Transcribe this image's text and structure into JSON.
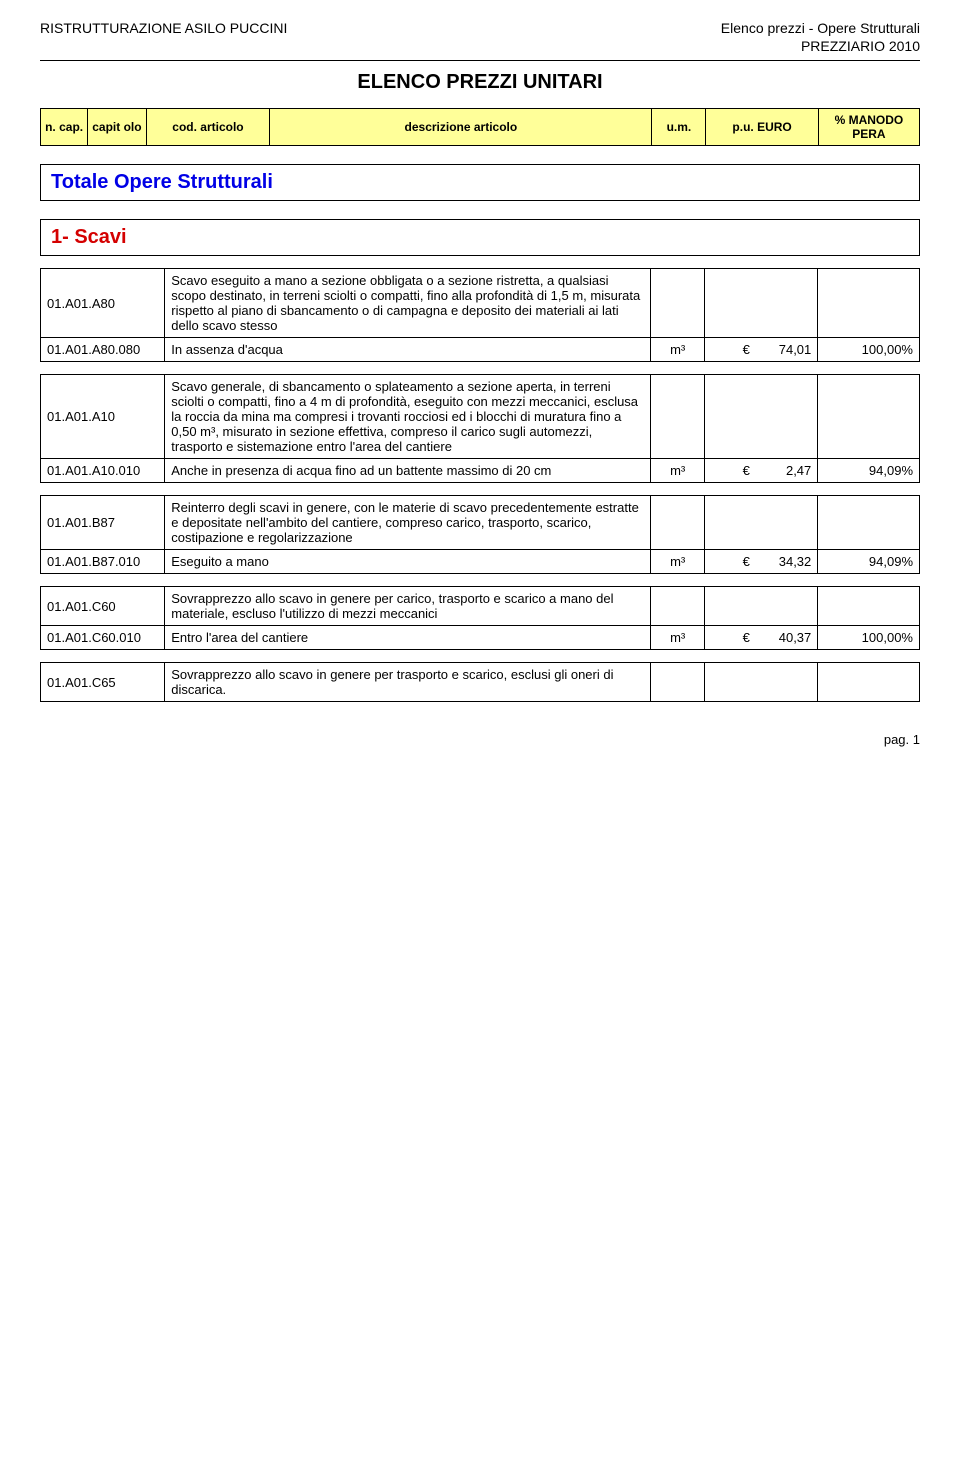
{
  "header": {
    "left": "RISTRUTTURAZIONE ASILO PUCCINI",
    "right1": "Elenco prezzi - Opere Strutturali",
    "right2": "PREZZIARIO 2010"
  },
  "main_title": "ELENCO PREZZI UNITARI",
  "headrow": {
    "n": "n. cap.",
    "cap": "capit olo",
    "cod": "cod. articolo",
    "desc": "descrizione articolo",
    "um": "u.m.",
    "pu": "p.u. EURO",
    "pc": "% MANODO PERA"
  },
  "section_total": "Totale Opere Strutturali",
  "section_1": "1-  Scavi",
  "items": [
    {
      "code_head": "01.A01.A80",
      "desc_head": "Scavo eseguito a mano a sezione obbligata o a sezione ristretta, a qualsiasi scopo destinato, in terreni sciolti o compatti, fino alla profondità di 1,5 m, misurata rispetto al piano di sbancamento o di campagna e deposito dei materiali ai lati dello scavo stesso",
      "rows": [
        {
          "code": "01.A01.A80.080",
          "desc": "In assenza d'acqua",
          "um": "m³",
          "price": "€        74,01",
          "pct": "100,00%"
        }
      ]
    },
    {
      "code_head": "01.A01.A10",
      "desc_head": "Scavo generale, di sbancamento o splateamento a sezione aperta, in terreni sciolti o compatti, fino a 4 m di profondità, eseguito con mezzi meccanici, esclusa la roccia da mina ma compresi i trovanti rocciosi ed i blocchi di muratura fino a 0,50 m³, misurato in sezione effettiva, compreso il carico sugli automezzi, trasporto e sistemazione entro l'area del cantiere",
      "desc_small": true,
      "rows": [
        {
          "code": "01.A01.A10.010",
          "desc": "Anche in presenza di acqua fino ad un battente massimo di 20 cm",
          "desc_small": true,
          "um": "m³",
          "price": "€          2,47",
          "pct": "94,09%"
        }
      ]
    },
    {
      "code_head": "01.A01.B87",
      "desc_head": "Reinterro degli scavi in genere, con le materie di scavo precedentemente estratte e depositate nell'ambito del cantiere, compreso carico, trasporto, scarico, costipazione e regolarizzazione",
      "rows": [
        {
          "code": "01.A01.B87.010",
          "desc": "Eseguito a mano",
          "um": "m³",
          "price": "€        34,32",
          "pct": "94,09%"
        }
      ]
    },
    {
      "code_head": "01.A01.C60",
      "desc_head": "Sovrapprezzo allo scavo in genere per carico, trasporto e scarico a mano del materiale, escluso l'utilizzo di mezzi meccanici",
      "rows": [
        {
          "code": "01.A01.C60.010",
          "desc": "Entro l'area del cantiere",
          "um": "m³",
          "price": "€        40,37",
          "pct": "100,00%"
        }
      ]
    },
    {
      "code_head": "01.A01.C65",
      "desc_head": "Sovrapprezzo allo scavo in genere per trasporto e scarico, esclusi gli oneri di discarica.",
      "rows": []
    }
  ],
  "pager": "pag. 1",
  "colors": {
    "highlight": "#ffff99",
    "blue": "#0000e6",
    "red": "#d40000"
  }
}
